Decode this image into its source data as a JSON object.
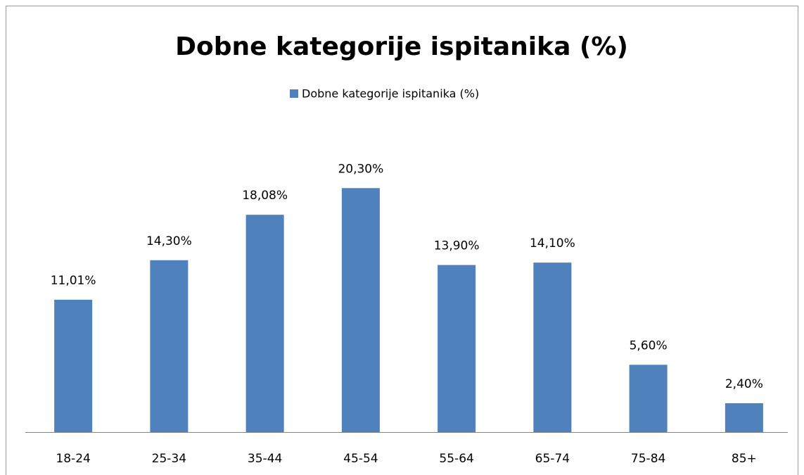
{
  "chart_data": {
    "type": "bar",
    "title": "Dobne kategorije ispitanika (%)",
    "categories": [
      "18-24",
      "25-34",
      "35-44",
      "45-54",
      "55-64",
      "65-74",
      "75-84",
      "85+"
    ],
    "series": [
      {
        "name": "Dobne kategorije ispitanika (%)",
        "color": "#4f81bd",
        "values": [
          11.01,
          14.3,
          18.08,
          20.3,
          13.9,
          14.1,
          5.6,
          2.4
        ],
        "value_labels": [
          "11,01%",
          "14,30%",
          "18,08%",
          "20,30%",
          "13,90%",
          "14,10%",
          "5,60%",
          "2,40%"
        ]
      }
    ],
    "ylim": [
      0,
      25
    ],
    "legend": "top"
  }
}
